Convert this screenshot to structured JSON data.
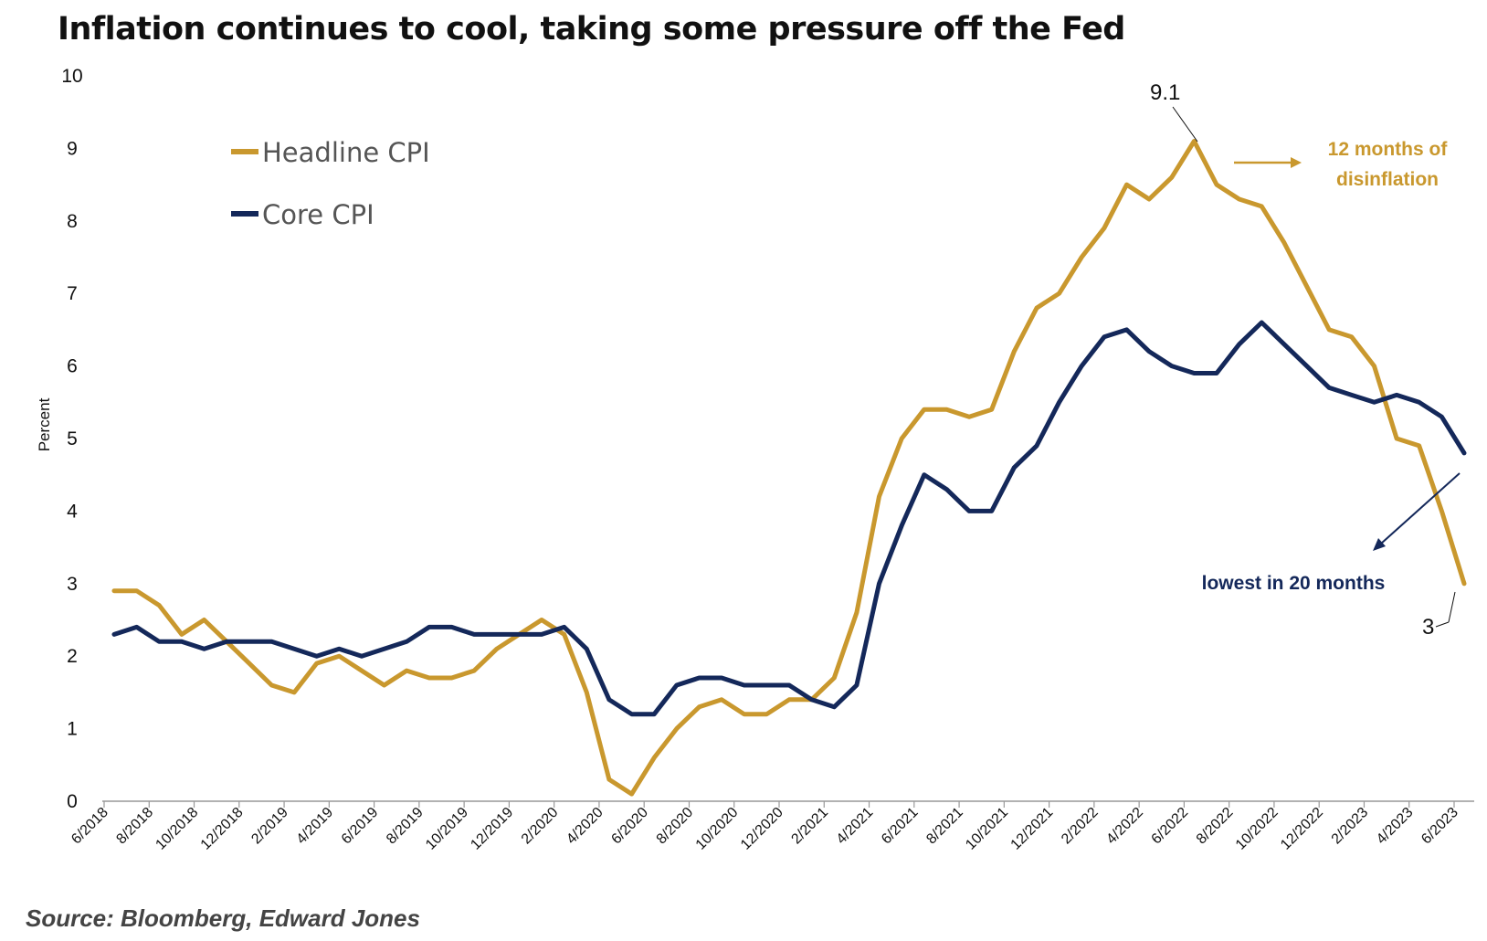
{
  "title": "Inflation continues to cool, taking some pressure off the Fed",
  "source": "Source: Bloomberg, Edward Jones",
  "colors": {
    "headline": "#c9982e",
    "core": "#14285a",
    "disinflation_text": "#c9982e",
    "lowest_text": "#14285a"
  },
  "chart_data": {
    "type": "line",
    "ylabel": "Percent",
    "ylim": [
      0,
      10
    ],
    "yticks": [
      "0",
      "1",
      "2",
      "3",
      "4",
      "5",
      "6",
      "7",
      "8",
      "9",
      "10"
    ],
    "xticks": [
      "6/2018",
      "8/2018",
      "10/2018",
      "12/2018",
      "2/2019",
      "4/2019",
      "6/2019",
      "8/2019",
      "10/2019",
      "12/2019",
      "2/2020",
      "4/2020",
      "6/2020",
      "8/2020",
      "10/2020",
      "12/2020",
      "2/2021",
      "4/2021",
      "6/2021",
      "8/2021",
      "10/2021",
      "12/2021",
      "2/2022",
      "4/2022",
      "6/2022",
      "8/2022",
      "10/2022",
      "12/2022",
      "2/2023",
      "4/2023",
      "6/2023"
    ],
    "x": [
      "6/2018",
      "7/2018",
      "8/2018",
      "9/2018",
      "10/2018",
      "11/2018",
      "12/2018",
      "1/2019",
      "2/2019",
      "3/2019",
      "4/2019",
      "5/2019",
      "6/2019",
      "7/2019",
      "8/2019",
      "9/2019",
      "10/2019",
      "11/2019",
      "12/2019",
      "1/2020",
      "2/2020",
      "3/2020",
      "4/2020",
      "5/2020",
      "6/2020",
      "7/2020",
      "8/2020",
      "9/2020",
      "10/2020",
      "11/2020",
      "12/2020",
      "1/2021",
      "2/2021",
      "3/2021",
      "4/2021",
      "5/2021",
      "6/2021",
      "7/2021",
      "8/2021",
      "9/2021",
      "10/2021",
      "11/2021",
      "12/2021",
      "1/2022",
      "2/2022",
      "3/2022",
      "4/2022",
      "5/2022",
      "6/2022",
      "7/2022",
      "8/2022",
      "9/2022",
      "10/2022",
      "11/2022",
      "12/2022",
      "1/2023",
      "2/2023",
      "3/2023",
      "4/2023",
      "5/2023",
      "6/2023"
    ],
    "series": [
      {
        "name": "Headline CPI",
        "values": [
          2.9,
          2.9,
          2.7,
          2.3,
          2.5,
          2.2,
          1.9,
          1.6,
          1.5,
          1.9,
          2.0,
          1.8,
          1.6,
          1.8,
          1.7,
          1.7,
          1.8,
          2.1,
          2.3,
          2.5,
          2.3,
          1.5,
          0.3,
          0.1,
          0.6,
          1.0,
          1.3,
          1.4,
          1.2,
          1.2,
          1.4,
          1.4,
          1.7,
          2.6,
          4.2,
          5.0,
          5.4,
          5.4,
          5.3,
          5.4,
          6.2,
          6.8,
          7.0,
          7.5,
          7.9,
          8.5,
          8.3,
          8.6,
          9.1,
          8.5,
          8.3,
          8.2,
          7.7,
          7.1,
          6.5,
          6.4,
          6.0,
          5.0,
          4.9,
          4.0,
          3.0
        ]
      },
      {
        "name": "Core CPI",
        "values": [
          2.3,
          2.4,
          2.2,
          2.2,
          2.1,
          2.2,
          2.2,
          2.2,
          2.1,
          2.0,
          2.1,
          2.0,
          2.1,
          2.2,
          2.4,
          2.4,
          2.3,
          2.3,
          2.3,
          2.3,
          2.4,
          2.1,
          1.4,
          1.2,
          1.2,
          1.6,
          1.7,
          1.7,
          1.6,
          1.6,
          1.6,
          1.4,
          1.3,
          1.6,
          3.0,
          3.8,
          4.5,
          4.3,
          4.0,
          4.0,
          4.6,
          4.9,
          5.5,
          6.0,
          6.4,
          6.5,
          6.2,
          6.0,
          5.9,
          5.9,
          6.3,
          6.6,
          6.3,
          6.0,
          5.7,
          5.6,
          5.5,
          5.6,
          5.5,
          5.3,
          4.8
        ]
      }
    ],
    "annotations": {
      "peak_label": "9.1",
      "last_label": "3",
      "disinflation_line1": "12 months of",
      "disinflation_line2": "disinflation",
      "lowest": "lowest in 20 months"
    },
    "legend": "top-left",
    "grid": false
  }
}
